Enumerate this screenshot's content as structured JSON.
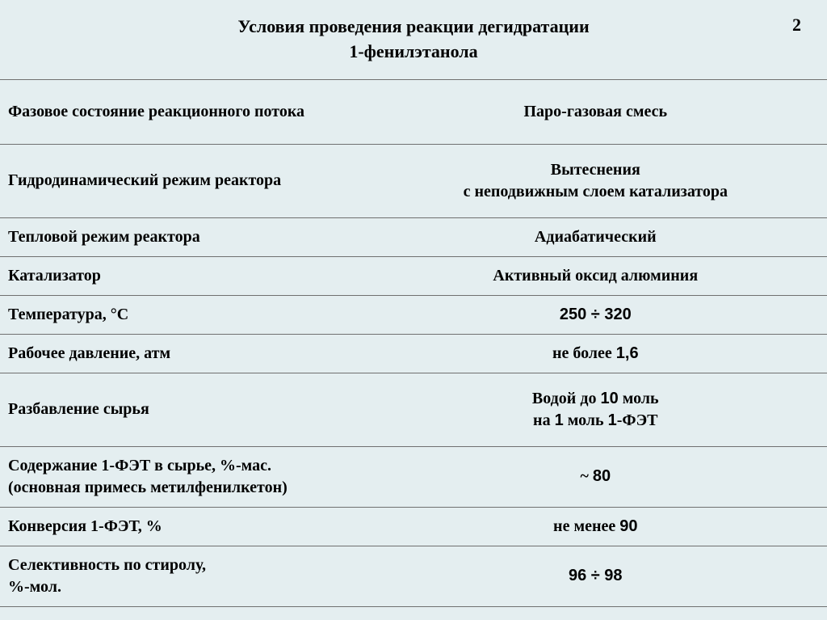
{
  "page_number": "2",
  "title_line1": "Условия проведения реакции дегидратации",
  "title_line2": "1-фенилэтанола",
  "rows": {
    "r0": {
      "param": "Фазовое состояние реакционного потока",
      "value": "Паро-газовая смесь"
    },
    "r1": {
      "param": "Гидродинамический режим реактора",
      "value_l1": "Вытеснения",
      "value_l2": "с неподвижным слоем катализатора"
    },
    "r2": {
      "param": "Тепловой режим реактора",
      "value": "Адиабатический"
    },
    "r3": {
      "param": "Катализатор",
      "value": "Активный оксид алюминия"
    },
    "r4": {
      "param": "Температура, °С",
      "value": "250 ÷ 320"
    },
    "r5": {
      "param": "Рабочее давление, атм",
      "value_pre": "не более ",
      "value_num": "1,6"
    },
    "r6": {
      "param": "Разбавление сырья",
      "value_l1_pre": "Водой до ",
      "value_l1_num": "10",
      "value_l1_post": " моль",
      "value_l2_pre": "на ",
      "value_l2_num1": "1",
      "value_l2_mid": " моль ",
      "value_l2_num2": "1",
      "value_l2_post": "-ФЭТ"
    },
    "r7": {
      "param_l1": "Содержание 1-ФЭТ в сырье, %-мас.",
      "param_l2": "(основная примесь метилфенилкетон)",
      "value_pre": "~ ",
      "value_num": "80"
    },
    "r8": {
      "param": "Конверсия 1-ФЭТ, %",
      "value_pre": "не менее ",
      "value_num": "90"
    },
    "r9": {
      "param_l1": "Селективность по стиролу,",
      "param_l2": "%-мол.",
      "value": "96 ÷ 98"
    }
  },
  "style": {
    "background": "#e4eef0",
    "border_color": "#707070",
    "title_fontsize": 22,
    "cell_fontsize": 20,
    "font_serif": "Times New Roman",
    "font_sans": "Arial"
  }
}
